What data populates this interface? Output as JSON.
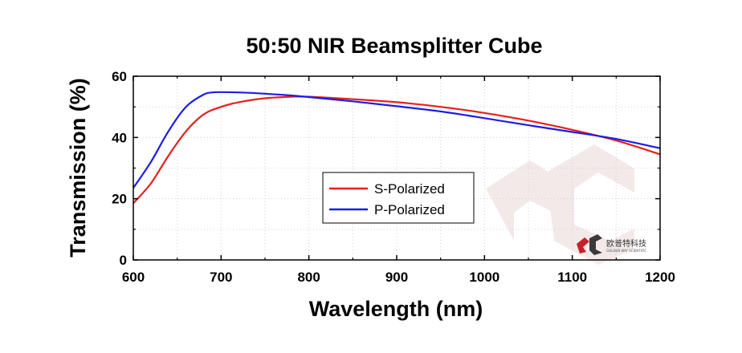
{
  "chart_data": {
    "type": "line",
    "title": "50:50 NIR Beamsplitter Cube",
    "xlabel": "Wavelength (nm)",
    "ylabel": "Transmission (%)",
    "xlim": [
      600,
      1200
    ],
    "ylim": [
      0,
      60
    ],
    "xticks": [
      600,
      700,
      800,
      900,
      1000,
      1100,
      1200
    ],
    "yticks": [
      0,
      20,
      40,
      60
    ],
    "grid": true,
    "legend_position": "center",
    "series": [
      {
        "name": "S-Polarized",
        "color": "#e8201c",
        "x": [
          600,
          620,
          640,
          660,
          680,
          700,
          720,
          750,
          780,
          800,
          850,
          900,
          950,
          1000,
          1050,
          1100,
          1150,
          1200
        ],
        "y": [
          18.5,
          25,
          34,
          42,
          47.5,
          50,
          51.5,
          52.8,
          53.3,
          53.3,
          52.5,
          51.5,
          50,
          48,
          45.5,
          42.5,
          39,
          34.5
        ]
      },
      {
        "name": "P-Polarized",
        "color": "#1c1ce8",
        "x": [
          600,
          620,
          640,
          660,
          680,
          690,
          700,
          720,
          750,
          780,
          800,
          850,
          900,
          950,
          1000,
          1050,
          1100,
          1150,
          1200
        ],
        "y": [
          23.5,
          32,
          42,
          50,
          54,
          54.7,
          54.8,
          54.7,
          54.3,
          53.7,
          53.2,
          51.8,
          50.2,
          48.5,
          46.3,
          44,
          41.8,
          39.5,
          36.5
        ]
      }
    ]
  },
  "watermark": {
    "brand_cn": "欧普特科技",
    "brand_en": "GOLDEN WAY SCIENTIFIC"
  }
}
